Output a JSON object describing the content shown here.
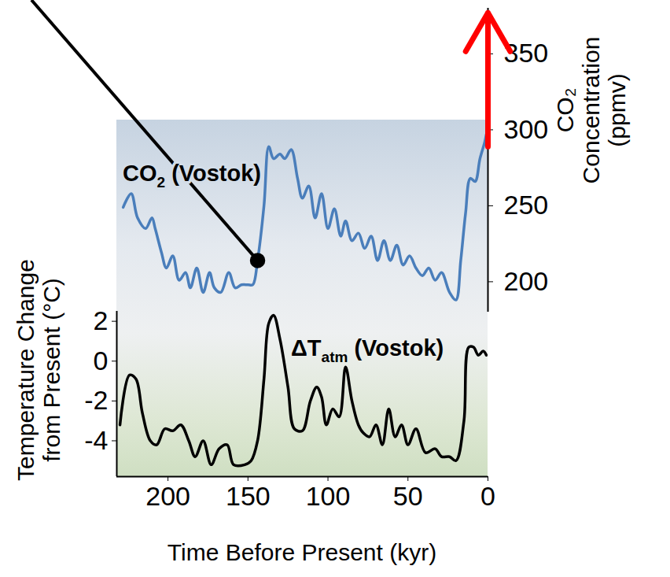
{
  "chart_data": {
    "type": "line",
    "x_label": "Time Before Present (kyr)",
    "y_label": "Temperature Change from Present (°C)",
    "y2_label": "CO₂ Concentration (ppmv)",
    "xlim": [
      232,
      0
    ],
    "xticks": [
      200,
      150,
      100,
      50,
      0
    ],
    "ylim": [
      -5.8,
      2.5
    ],
    "yticks": [
      -4,
      -2,
      0,
      2
    ],
    "y2lim": [
      180,
      380
    ],
    "y2ticks": [
      200,
      250,
      300,
      350
    ],
    "series": [
      {
        "label": {
          "main": "CO",
          "sub": "2",
          "rest": " (Vostok)"
        },
        "color": "#4a7ebb",
        "axis": "y2",
        "x": [
          228,
          223,
          219,
          214,
          210,
          208,
          204,
          201,
          197,
          193,
          189,
          186,
          182,
          178,
          174,
          171,
          167,
          162,
          158,
          154,
          150,
          147,
          144,
          140,
          137,
          134,
          130,
          127,
          123,
          119,
          116,
          112,
          108,
          104,
          100,
          96,
          92,
          89,
          85,
          81,
          77,
          73,
          69,
          65,
          61,
          57,
          53,
          49,
          45,
          41,
          37,
          33,
          29,
          24,
          20,
          17,
          14,
          11,
          8,
          5,
          2,
          1
        ],
        "values": [
          249,
          258,
          242,
          235,
          242,
          235,
          219,
          209,
          217,
          201,
          206,
          196,
          209,
          193,
          206,
          196,
          193,
          206,
          196,
          198,
          198,
          198,
          214,
          250,
          289,
          281,
          284,
          281,
          287,
          268,
          255,
          263,
          242,
          258,
          235,
          248,
          230,
          240,
          227,
          232,
          222,
          230,
          214,
          227,
          214,
          224,
          211,
          217,
          209,
          204,
          209,
          201,
          206,
          193,
          188,
          214,
          245,
          268,
          266,
          281,
          292,
          297
        ]
      },
      {
        "label": {
          "main": "ΔT",
          "sub": "atm",
          "rest": " (Vostok)"
        },
        "color": "#000000",
        "x": [
          230,
          224,
          220,
          216,
          211,
          207,
          202,
          197,
          192,
          187,
          183,
          178,
          173,
          168,
          163,
          159,
          152,
          148,
          144,
          140,
          137,
          134,
          130,
          125,
          121,
          116,
          111,
          107,
          104,
          101,
          97,
          93,
          89,
          85,
          81,
          78,
          74,
          70,
          66,
          62,
          58,
          54,
          50,
          45,
          39,
          33,
          29,
          24,
          20,
          15,
          12,
          9,
          6,
          3,
          1
        ],
        "values": [
          -3.2,
          -0.7,
          -0.9,
          -2.6,
          -4,
          -4.2,
          -3.4,
          -3.5,
          -3.2,
          -4,
          -4.8,
          -4,
          -5.2,
          -4.4,
          -4.2,
          -5.2,
          -5.2,
          -5,
          -4,
          -0.9,
          1.9,
          2.3,
          1.1,
          -1.3,
          -3.4,
          -3.5,
          -2,
          -1.3,
          -1.8,
          -3.2,
          -2.4,
          -2.8,
          -0.3,
          -2,
          -3.2,
          -3.6,
          -3.8,
          -3.2,
          -4.2,
          -2.4,
          -3.8,
          -3.2,
          -4.2,
          -3.4,
          -4.6,
          -4.4,
          -4.8,
          -4.8,
          -5,
          -3,
          0.7,
          0.7,
          0.3,
          0.5,
          0.3
        ]
      }
    ],
    "annotations": {
      "arrow": {
        "x": 0,
        "from": 289,
        "to": 377,
        "color": "#ff0000"
      },
      "marker_point": {
        "x": 144,
        "y": 214,
        "color": "#000000"
      }
    }
  }
}
